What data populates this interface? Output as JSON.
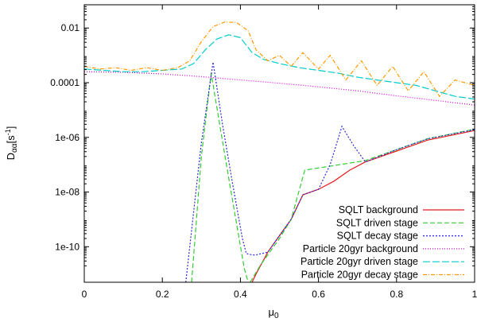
{
  "chart_data": {
    "type": "line",
    "title": "",
    "xlabel": "μ",
    "xlabel_sub": "0",
    "ylabel": "D",
    "ylabel_sub": "αα",
    "ylabel_unit": "[s",
    "ylabel_unit_sup": "-1",
    "ylabel_unit_end": "]",
    "xlim": [
      0,
      1
    ],
    "ylim_log10": [
      -11.3,
      -1.15
    ],
    "yscale": "log",
    "grid": false,
    "legend_position": "bottom-right",
    "x_ticks": [
      {
        "value": 0,
        "label": "0"
      },
      {
        "value": 0.2,
        "label": "0.2"
      },
      {
        "value": 0.4,
        "label": "0.4"
      },
      {
        "value": 0.6,
        "label": "0.6"
      },
      {
        "value": 0.8,
        "label": "0.8"
      },
      {
        "value": 1,
        "label": "1"
      }
    ],
    "y_ticks": [
      {
        "exp": -10,
        "label": "1e-10"
      },
      {
        "exp": -8,
        "label": "1e-08"
      },
      {
        "exp": -6,
        "label": "1e-06"
      },
      {
        "exp": -4,
        "label": "0.0001"
      },
      {
        "exp": -2,
        "label": "0.01"
      }
    ],
    "series": [
      {
        "name": "SQLT background",
        "color": "#e41a1c",
        "dash": "solid",
        "points_log10": [
          [
            0.43,
            -11.3
          ],
          [
            0.44,
            -11.0
          ],
          [
            0.47,
            -10.2
          ],
          [
            0.5,
            -9.6
          ],
          [
            0.53,
            -9.0
          ],
          [
            0.56,
            -8.1
          ],
          [
            0.6,
            -7.9
          ],
          [
            0.64,
            -7.6
          ],
          [
            0.68,
            -7.2
          ],
          [
            0.72,
            -6.9
          ],
          [
            0.8,
            -6.5
          ],
          [
            0.88,
            -6.1
          ],
          [
            1.0,
            -5.75
          ]
        ]
      },
      {
        "name": "SQLT driven stage",
        "color": "#33cc33",
        "dash": "6,3",
        "points_log10": [
          [
            0.275,
            -11.3
          ],
          [
            0.3,
            -6.7
          ],
          [
            0.325,
            -3.65
          ],
          [
            0.35,
            -5.8
          ],
          [
            0.375,
            -7.9
          ],
          [
            0.41,
            -10.8
          ],
          [
            0.42,
            -11.3
          ]
        ],
        "points2_log10": [
          [
            0.425,
            -11.3
          ],
          [
            0.45,
            -10.7
          ],
          [
            0.5,
            -9.7
          ],
          [
            0.53,
            -9.0
          ],
          [
            0.565,
            -7.2
          ],
          [
            0.72,
            -6.85
          ],
          [
            0.8,
            -6.45
          ],
          [
            0.88,
            -6.05
          ],
          [
            1.0,
            -5.7
          ]
        ]
      },
      {
        "name": "SQLT decay stage",
        "color": "#2a2ad6",
        "dash": "2,2",
        "points_log10": [
          [
            0.26,
            -11.3
          ],
          [
            0.3,
            -6.2
          ],
          [
            0.33,
            -3.25
          ],
          [
            0.355,
            -5.6
          ],
          [
            0.38,
            -7.7
          ],
          [
            0.405,
            -9.7
          ],
          [
            0.415,
            -10.25
          ],
          [
            0.43,
            -10.3
          ],
          [
            0.44,
            -10.3
          ],
          [
            0.47,
            -10.2
          ],
          [
            0.5,
            -9.6
          ],
          [
            0.53,
            -9.0
          ],
          [
            0.56,
            -8.1
          ],
          [
            0.6,
            -7.9
          ],
          [
            0.63,
            -7.0
          ],
          [
            0.66,
            -5.6
          ],
          [
            0.69,
            -6.3
          ],
          [
            0.72,
            -6.9
          ],
          [
            0.8,
            -6.45
          ],
          [
            0.88,
            -6.05
          ],
          [
            1.0,
            -5.72
          ]
        ]
      },
      {
        "name": "Particle 20gyr background",
        "color": "#e000e0",
        "dash": "1,2",
        "points_log10": [
          [
            0.0,
            -3.6
          ],
          [
            0.1,
            -3.62
          ],
          [
            0.2,
            -3.68
          ],
          [
            0.3,
            -3.78
          ],
          [
            0.4,
            -3.9
          ],
          [
            0.5,
            -4.02
          ],
          [
            0.6,
            -4.15
          ],
          [
            0.7,
            -4.3
          ],
          [
            0.8,
            -4.48
          ],
          [
            0.9,
            -4.65
          ],
          [
            1.0,
            -4.82
          ]
        ]
      },
      {
        "name": "Particle 20gyr driven stage",
        "color": "#00cccc",
        "dash": "9,3",
        "points_log10": [
          [
            0.0,
            -3.5
          ],
          [
            0.05,
            -3.55
          ],
          [
            0.1,
            -3.6
          ],
          [
            0.15,
            -3.6
          ],
          [
            0.2,
            -3.55
          ],
          [
            0.25,
            -3.5
          ],
          [
            0.28,
            -3.3
          ],
          [
            0.31,
            -2.8
          ],
          [
            0.34,
            -2.4
          ],
          [
            0.37,
            -2.25
          ],
          [
            0.4,
            -2.35
          ],
          [
            0.43,
            -2.9
          ],
          [
            0.46,
            -3.15
          ],
          [
            0.5,
            -3.3
          ],
          [
            0.55,
            -3.45
          ],
          [
            0.6,
            -3.55
          ],
          [
            0.65,
            -3.65
          ],
          [
            0.7,
            -3.8
          ],
          [
            0.75,
            -3.9
          ],
          [
            0.8,
            -4.0
          ],
          [
            0.85,
            -4.1
          ],
          [
            0.9,
            -4.3
          ],
          [
            0.95,
            -4.5
          ],
          [
            1.0,
            -4.6
          ]
        ]
      },
      {
        "name": "Particle 20gyr decay stage",
        "color": "#ff9900",
        "dash": "5,2,1,2",
        "points_log10": [
          [
            0.0,
            -3.4
          ],
          [
            0.04,
            -3.5
          ],
          [
            0.08,
            -3.45
          ],
          [
            0.12,
            -3.55
          ],
          [
            0.16,
            -3.45
          ],
          [
            0.2,
            -3.55
          ],
          [
            0.24,
            -3.45
          ],
          [
            0.27,
            -3.2
          ],
          [
            0.3,
            -2.5
          ],
          [
            0.33,
            -1.95
          ],
          [
            0.36,
            -1.78
          ],
          [
            0.39,
            -1.8
          ],
          [
            0.42,
            -2.1
          ],
          [
            0.44,
            -2.8
          ],
          [
            0.47,
            -3.2
          ],
          [
            0.5,
            -3.0
          ],
          [
            0.53,
            -3.4
          ],
          [
            0.56,
            -2.9
          ],
          [
            0.6,
            -3.5
          ],
          [
            0.63,
            -3.0
          ],
          [
            0.67,
            -3.9
          ],
          [
            0.71,
            -3.2
          ],
          [
            0.75,
            -4.1
          ],
          [
            0.79,
            -3.4
          ],
          [
            0.83,
            -4.3
          ],
          [
            0.87,
            -3.6
          ],
          [
            0.91,
            -4.5
          ],
          [
            0.95,
            -3.9
          ],
          [
            1.0,
            -4.1
          ]
        ]
      }
    ]
  }
}
